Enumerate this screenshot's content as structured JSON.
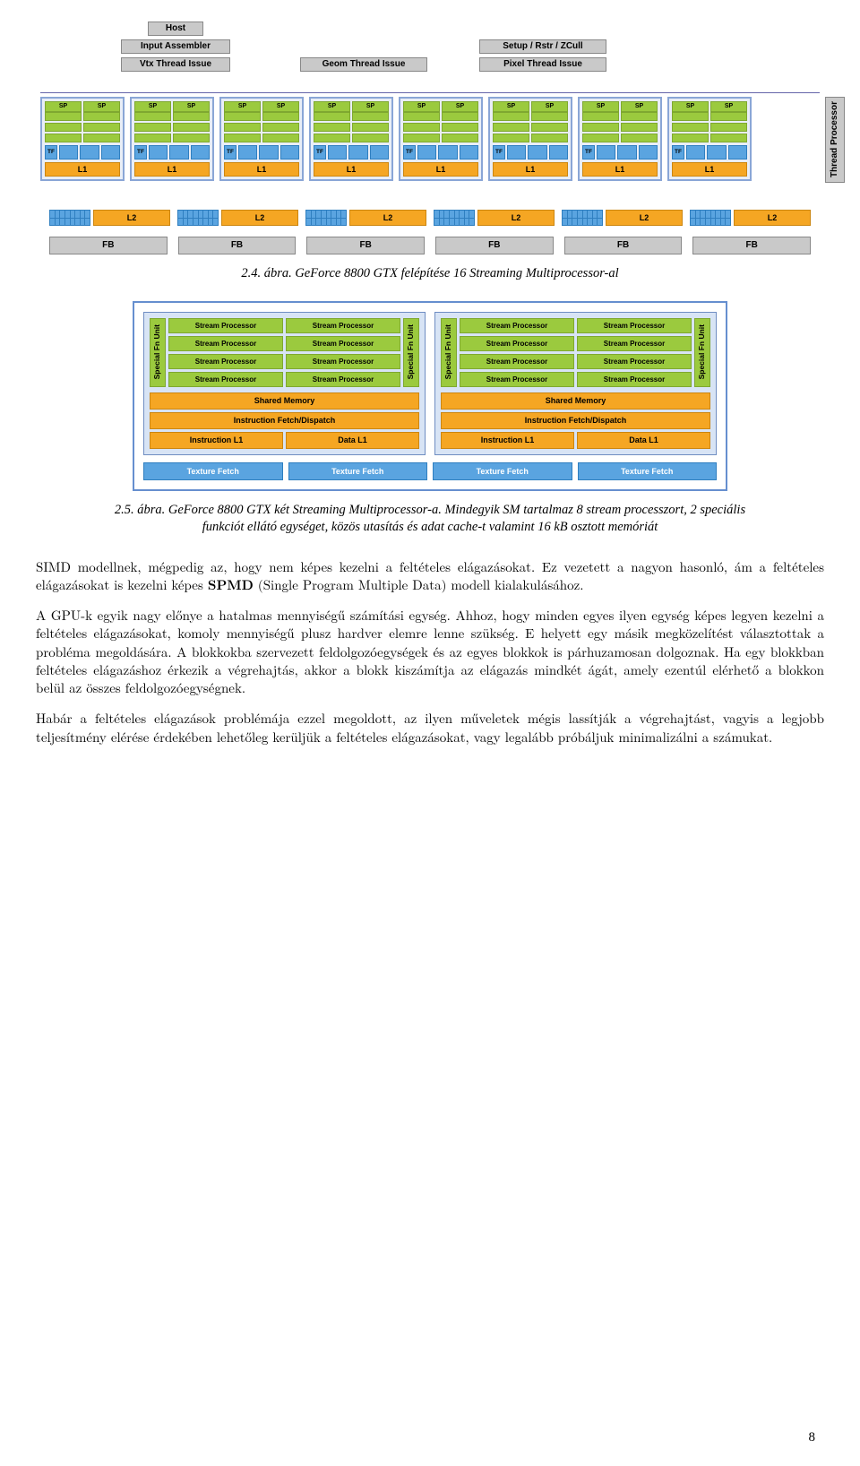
{
  "fig1": {
    "top": {
      "host": "Host",
      "input_assembler": "Input Assembler",
      "vtx": "Vtx Thread Issue",
      "geom": "Geom Thread Issue",
      "setup": "Setup / Rstr / ZCull",
      "pixel": "Pixel Thread Issue"
    },
    "sm_count": 8,
    "sp_label": "SP",
    "tf_label": "TF",
    "l1_label": "L1",
    "thread_processor": "Thread Processor",
    "l2_label": "L2",
    "l2_count": 6,
    "fb_label": "FB",
    "fb_count": 6,
    "colors": {
      "sp": "#9bca3e",
      "sp_border": "#7fa830",
      "tf": "#5aa4e0",
      "tf_border": "#2f7fc0",
      "l1": "#f5a623",
      "l1_border": "#cc8610",
      "gray": "#c9c9c9",
      "frame": "#8aa6d6"
    }
  },
  "caption1": "2.4. ábra. GeForce 8800 GTX felépítése 16 Streaming Multiprocessor-al",
  "fig2": {
    "special_fn": "Special Fn Unit",
    "stream_processor": "Stream Processor",
    "shared_memory": "Shared Memory",
    "instr_fetch": "Instruction Fetch/Dispatch",
    "instr_l1": "Instruction L1",
    "data_l1": "Data L1",
    "texture_fetch": "Texture Fetch",
    "sm_count": 2,
    "sp_rows": 4
  },
  "caption2": "2.5. ábra. GeForce 8800 GTX két Streaming Multiprocessor-a. Mindegyik SM tartalmaz 8 stream processzort, 2 speciális funkciót ellátó egységet, közös utasítás és adat cache-t valamint 16 kB osztott memóriát",
  "body": {
    "p1": "SIMD modellnek, mégpedig az, hogy nem képes kezelni a feltételes elágazásokat. Ez vezetett a nagyon hasonló, ám a feltételes elágazásokat is kezelni képes SPMD (Single Program Multiple Data) modell kialakulásához.",
    "p2": "A GPU-k egyik nagy előnye a hatalmas mennyiségű számítási egység. Ahhoz, hogy minden egyes ilyen egység képes legyen kezelni a feltételes elágazásokat, komoly mennyiségű plusz hardver elemre lenne szükség. E helyett egy másik megközelítést választottak a probléma megoldására. A blokkokba szervezett feldolgozóegységek és az egyes blokkok is párhuzamosan dolgoznak. Ha egy blokkban feltételes elágazáshoz érkezik a végrehajtás, akkor a blokk kiszámítja az elágazás mindkét ágát, amely ezentúl elérhető a blokkon belül az összes feldolgozóegységnek.",
    "p3": "Habár a feltételes elágazások problémája ezzel megoldott, az ilyen műveletek mégis lassítják a végrehajtást, vagyis a legjobb teljesítmény elérése érdekében lehetőleg kerüljük a feltételes elágazásokat, vagy legalább próbáljuk minimalizálni a számukat."
  },
  "page_number": "8"
}
